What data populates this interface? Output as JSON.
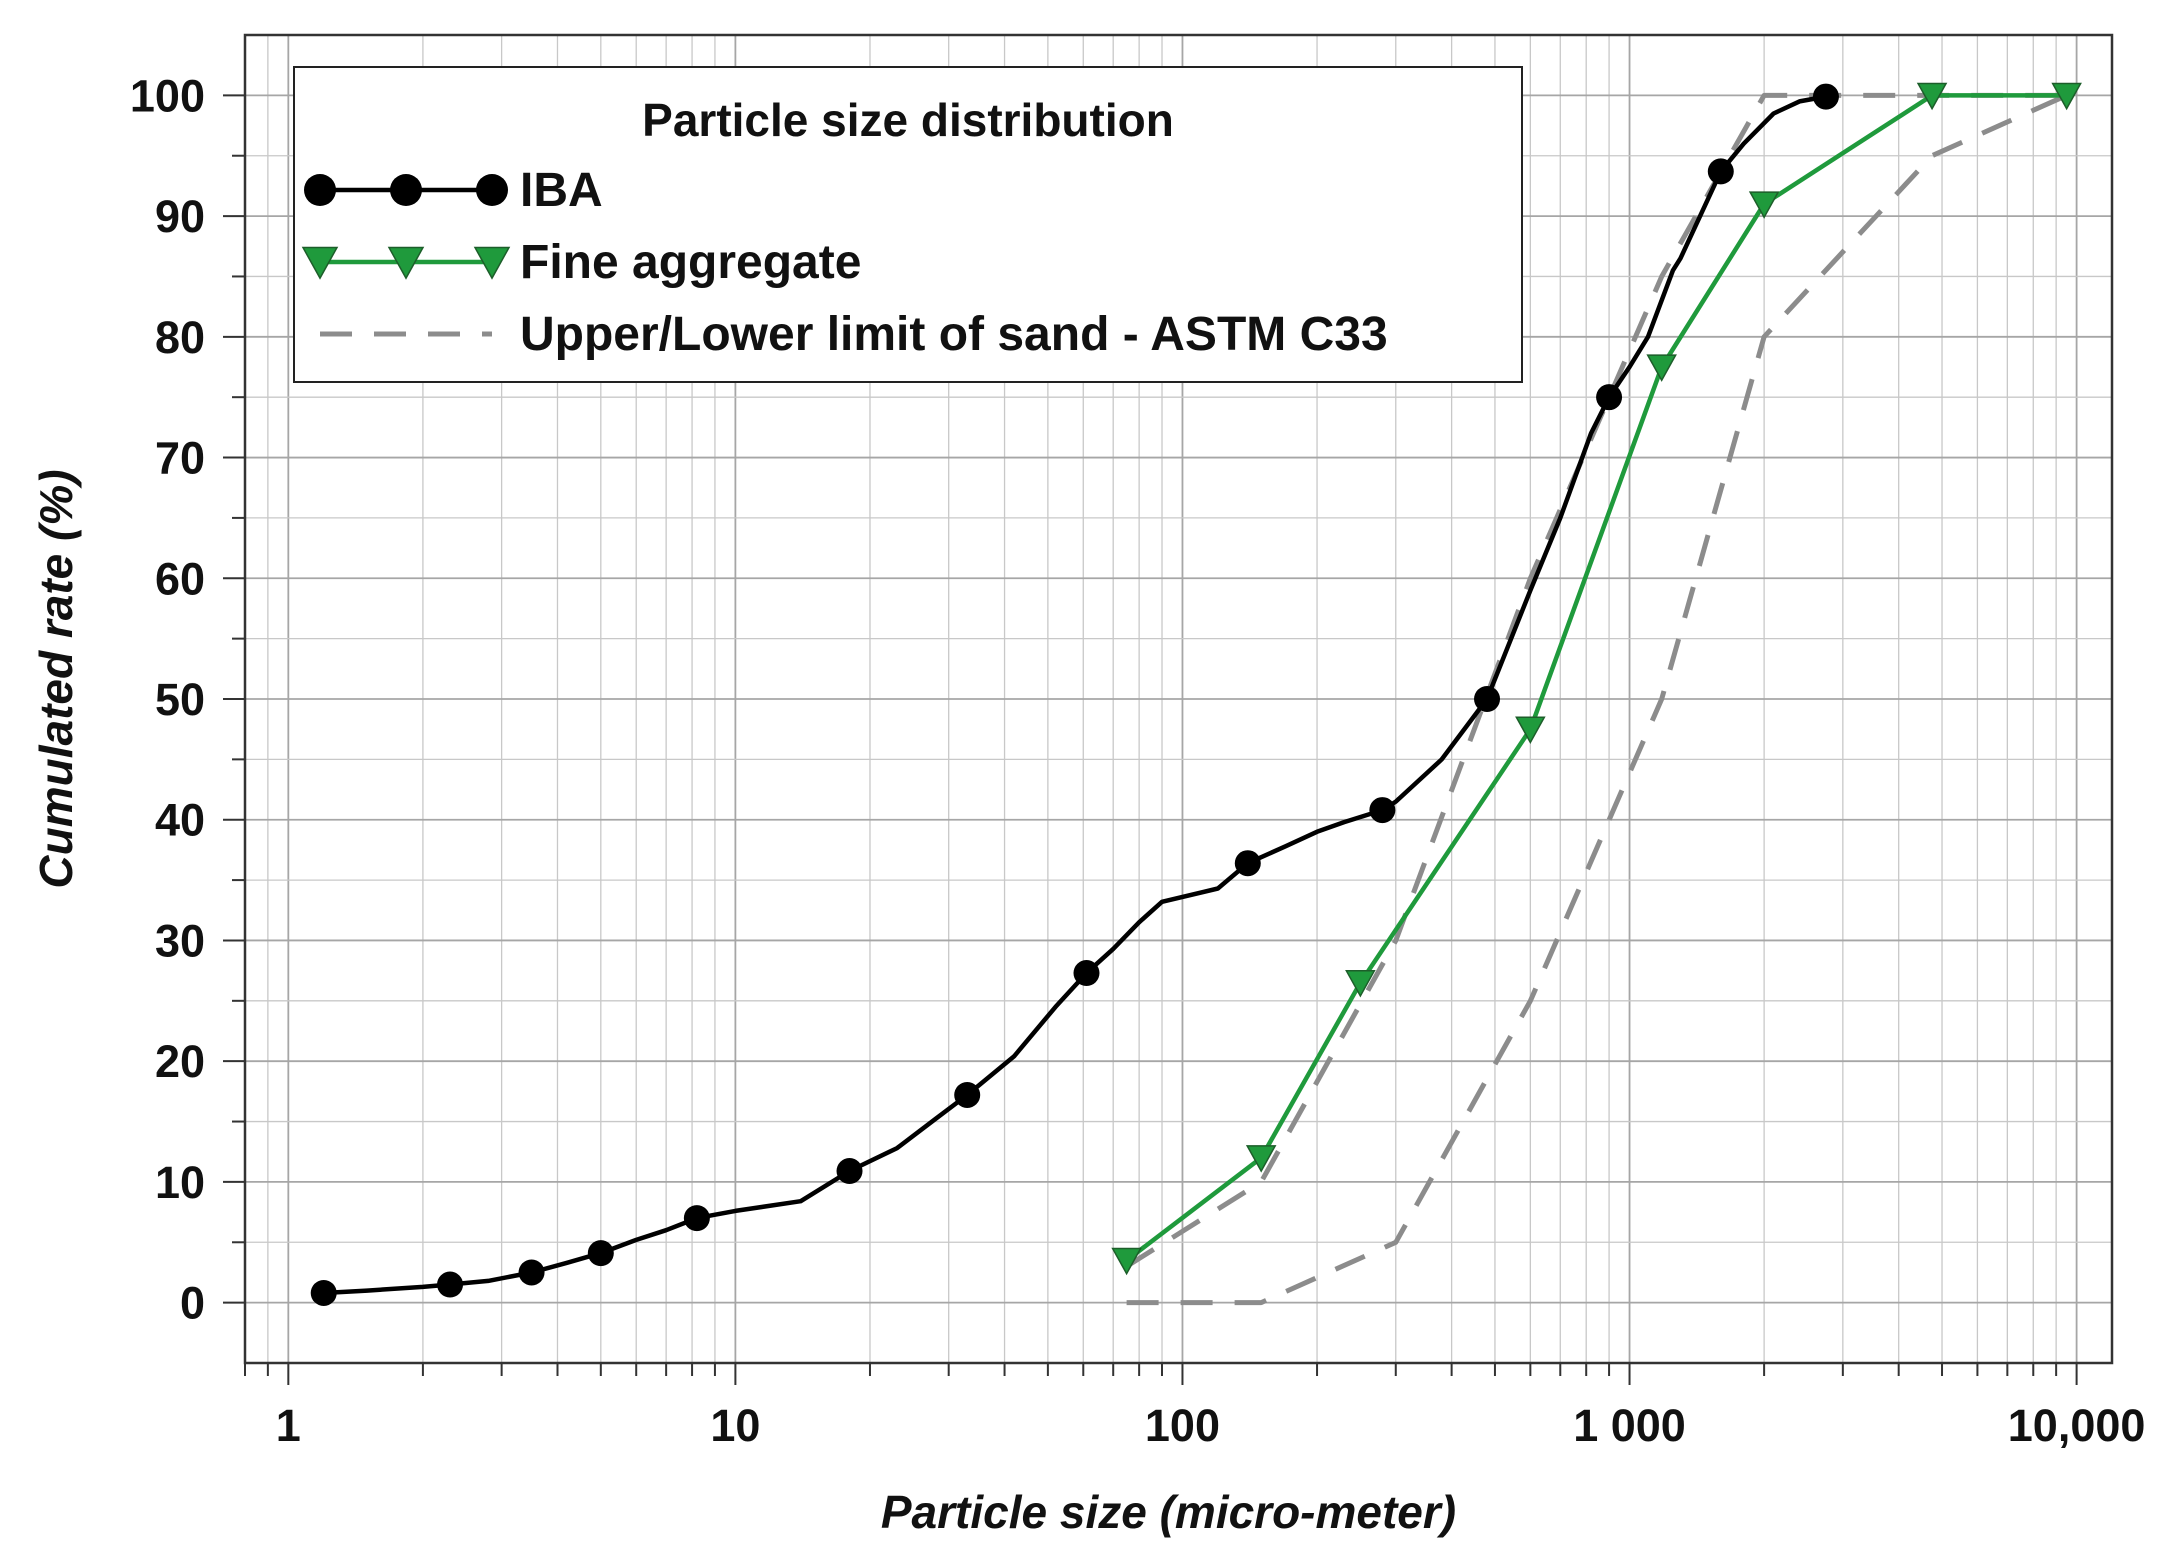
{
  "chart_data": {
    "type": "line",
    "x_scale": "log",
    "xlabel": "Particle size (micro-meter)",
    "ylabel": "Cumulated rate (%)",
    "xlim": [
      0.8,
      12000
    ],
    "ylim": [
      -5,
      105
    ],
    "grid": true,
    "legend": {
      "title": "Particle size distribution",
      "placement": "top-left"
    },
    "x_ticks": [
      {
        "value": 1,
        "label": "1"
      },
      {
        "value": 10,
        "label": "10"
      },
      {
        "value": 100,
        "label": "100"
      },
      {
        "value": 1000,
        "label": "1 000"
      },
      {
        "value": 10000,
        "label": "10,000"
      }
    ],
    "y_ticks": [
      {
        "value": 0,
        "label": "0"
      },
      {
        "value": 10,
        "label": "10"
      },
      {
        "value": 20,
        "label": "20"
      },
      {
        "value": 30,
        "label": "30"
      },
      {
        "value": 40,
        "label": "40"
      },
      {
        "value": 50,
        "label": "50"
      },
      {
        "value": 60,
        "label": "60"
      },
      {
        "value": 70,
        "label": "70"
      },
      {
        "value": 80,
        "label": "80"
      },
      {
        "value": 90,
        "label": "90"
      },
      {
        "value": 100,
        "label": "100"
      }
    ],
    "series": [
      {
        "name": "IBA",
        "color": "#000000",
        "marker": "circle",
        "line": [
          [
            1.2,
            0.8
          ],
          [
            1.5,
            1.0
          ],
          [
            2.0,
            1.3
          ],
          [
            2.3,
            1.5
          ],
          [
            2.8,
            1.8
          ],
          [
            3.5,
            2.5
          ],
          [
            4.2,
            3.3
          ],
          [
            5.0,
            4.1
          ],
          [
            6.0,
            5.2
          ],
          [
            7.0,
            6.0
          ],
          [
            8.2,
            7.0
          ],
          [
            10,
            7.6
          ],
          [
            14,
            8.4
          ],
          [
            18,
            10.9
          ],
          [
            23,
            12.8
          ],
          [
            28,
            15.2
          ],
          [
            33,
            17.2
          ],
          [
            42,
            20.4
          ],
          [
            52,
            24.5
          ],
          [
            61,
            27.3
          ],
          [
            70,
            29.3
          ],
          [
            80,
            31.5
          ],
          [
            90,
            33.2
          ],
          [
            120,
            34.3
          ],
          [
            140,
            36.4
          ],
          [
            170,
            37.8
          ],
          [
            200,
            39.0
          ],
          [
            230,
            39.8
          ],
          [
            280,
            40.8
          ],
          [
            300,
            41.5
          ],
          [
            380,
            45.0
          ],
          [
            480,
            50.0
          ],
          [
            600,
            59.0
          ],
          [
            700,
            65.0
          ],
          [
            820,
            72.0
          ],
          [
            900,
            75.0
          ],
          [
            1000,
            77.5
          ],
          [
            1100,
            80.0
          ],
          [
            1250,
            85.5
          ],
          [
            1300,
            86.5
          ],
          [
            1600,
            93.7
          ],
          [
            1800,
            96.0
          ],
          [
            2100,
            98.5
          ],
          [
            2400,
            99.5
          ],
          [
            2750,
            99.9
          ]
        ],
        "markers": [
          [
            1.2,
            0.8
          ],
          [
            2.3,
            1.5
          ],
          [
            3.5,
            2.5
          ],
          [
            5.0,
            4.1
          ],
          [
            8.2,
            7.0
          ],
          [
            18,
            10.9
          ],
          [
            33,
            17.2
          ],
          [
            61,
            27.3
          ],
          [
            140,
            36.4
          ],
          [
            280,
            40.8
          ],
          [
            480,
            50.0
          ],
          [
            900,
            75.0
          ],
          [
            1600,
            93.7
          ],
          [
            2750,
            99.9
          ]
        ]
      },
      {
        "name": "Fine aggregate",
        "color": "#1f9a3c",
        "marker": "triangle-down",
        "line": [
          [
            75,
            3.5
          ],
          [
            150,
            12.0
          ],
          [
            250,
            26.5
          ],
          [
            600,
            47.5
          ],
          [
            1180,
            77.5
          ],
          [
            2000,
            91.0
          ],
          [
            4750,
            100
          ],
          [
            9500,
            100
          ]
        ],
        "markers": [
          [
            75,
            3.5
          ],
          [
            150,
            12.0
          ],
          [
            250,
            26.5
          ],
          [
            600,
            47.5
          ],
          [
            1180,
            77.5
          ],
          [
            2000,
            91.0
          ],
          [
            4750,
            100
          ],
          [
            9500,
            100
          ]
        ]
      },
      {
        "name": "Upper/Lower limit of sand - ASTM C33",
        "color": "#8c8c8c",
        "dashed": true,
        "lines": [
          [
            [
              75,
              3.0
            ],
            [
              150,
              10.0
            ],
            [
              300,
              30.0
            ],
            [
              600,
              60.0
            ],
            [
              1180,
              85.0
            ],
            [
              2000,
              100
            ],
            [
              4750,
              100
            ],
            [
              9500,
              100
            ]
          ],
          [
            [
              75,
              0.0
            ],
            [
              150,
              0.0
            ],
            [
              300,
              5.0
            ],
            [
              600,
              25.0
            ],
            [
              1180,
              50.0
            ],
            [
              2000,
              80.0
            ],
            [
              4750,
              95.0
            ],
            [
              9500,
              100
            ]
          ]
        ]
      }
    ]
  }
}
